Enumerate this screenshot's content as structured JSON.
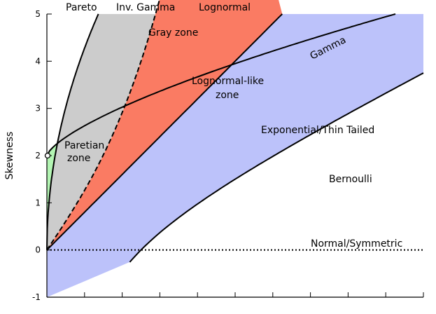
{
  "chart_data": {
    "type": "area",
    "title": "",
    "xlabel": "",
    "ylabel": "Skewness",
    "ylim": [
      -1,
      5
    ],
    "yticks": [
      "-1",
      "0",
      "1",
      "2",
      "3",
      "4",
      "5"
    ],
    "grid": false,
    "x_domain": [
      0,
      4
    ],
    "series": [
      {
        "name": "Pareto",
        "curve": "y = 2 + 1.2*x^0.7, vertical at 2"
      },
      {
        "name": "Inv. Gamma",
        "curve": "y = 4*sqrt(x/0.35)"
      },
      {
        "name": "Lognormal",
        "curve": "y = 3x + x^3, x in [0, 1.757]"
      },
      {
        "name": "Gamma",
        "curve": "y = 2x, x in [0, 3.5]"
      },
      {
        "name": "Bernoulli",
        "curve": "y = x - 1/x, x in [0.88, 4]"
      },
      {
        "name": "Normal/Symmetric",
        "curve": "y = 0"
      }
    ],
    "zones": [
      {
        "name": "Paretian zone",
        "color": "#b3f5b3"
      },
      {
        "name": "Gray zone",
        "color": "#cccccc"
      },
      {
        "name": "Lognormal-like zone",
        "color": "#fa7b63"
      },
      {
        "name": "Exponential/Thin Tailed",
        "color": "#bcc2fa"
      }
    ],
    "markers": [
      {
        "x": 0,
        "y": 2,
        "style": "open-circle"
      }
    ]
  },
  "labels": {
    "pareto": "Pareto",
    "inv_gamma": "Inv. Gamma",
    "lognormal": "Lognormal",
    "gray_zone": "Gray zone",
    "gamma": "Gamma",
    "lognormal_like_1": "Lognormal-like",
    "lognormal_like_2": "zone",
    "exponential": "Exponential/Thin Tailed",
    "paretian_1": "Paretian",
    "paretian_2": "zone",
    "bernoulli": "Bernoulli",
    "normal": "Normal/Symmetric"
  }
}
